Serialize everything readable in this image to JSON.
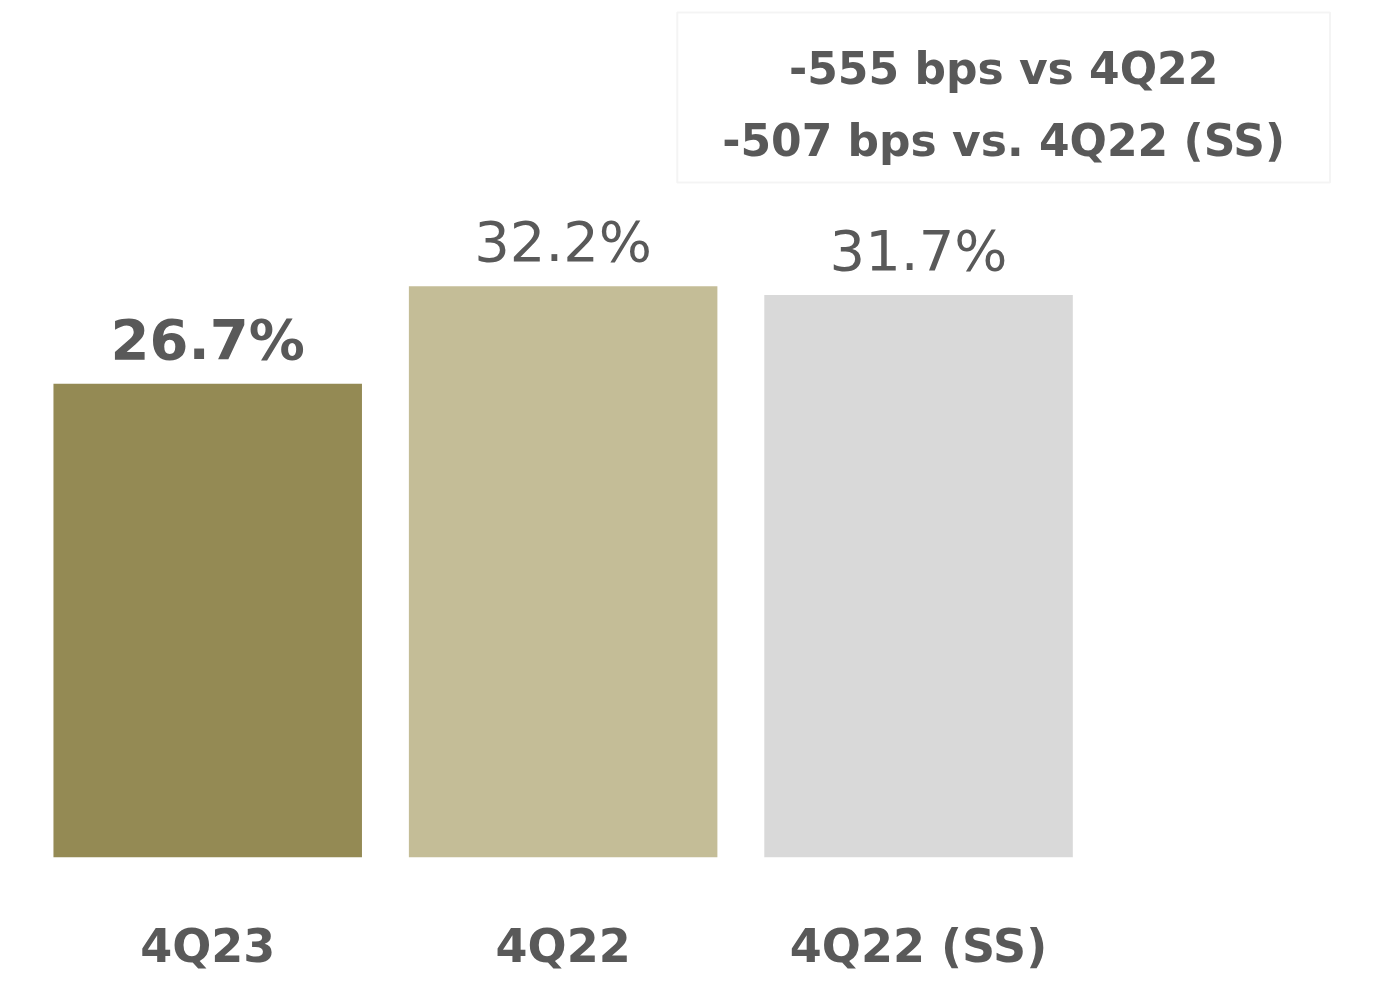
{
  "chart_data": {
    "type": "bar",
    "categories": [
      "4Q23",
      "4Q22",
      "4Q22 (SS)"
    ],
    "values": [
      26.7,
      32.2,
      31.7
    ],
    "colors": [
      "#948a54",
      "#c4bd97",
      "#d9d9d9"
    ],
    "value_labels": [
      "26.7%",
      "32.2%",
      "31.7%"
    ],
    "tick_labels": "x",
    "grid": false,
    "annotations": [
      "-555 bps vs 4Q22",
      "-507 bps vs. 4Q22 (SS)"
    ]
  }
}
